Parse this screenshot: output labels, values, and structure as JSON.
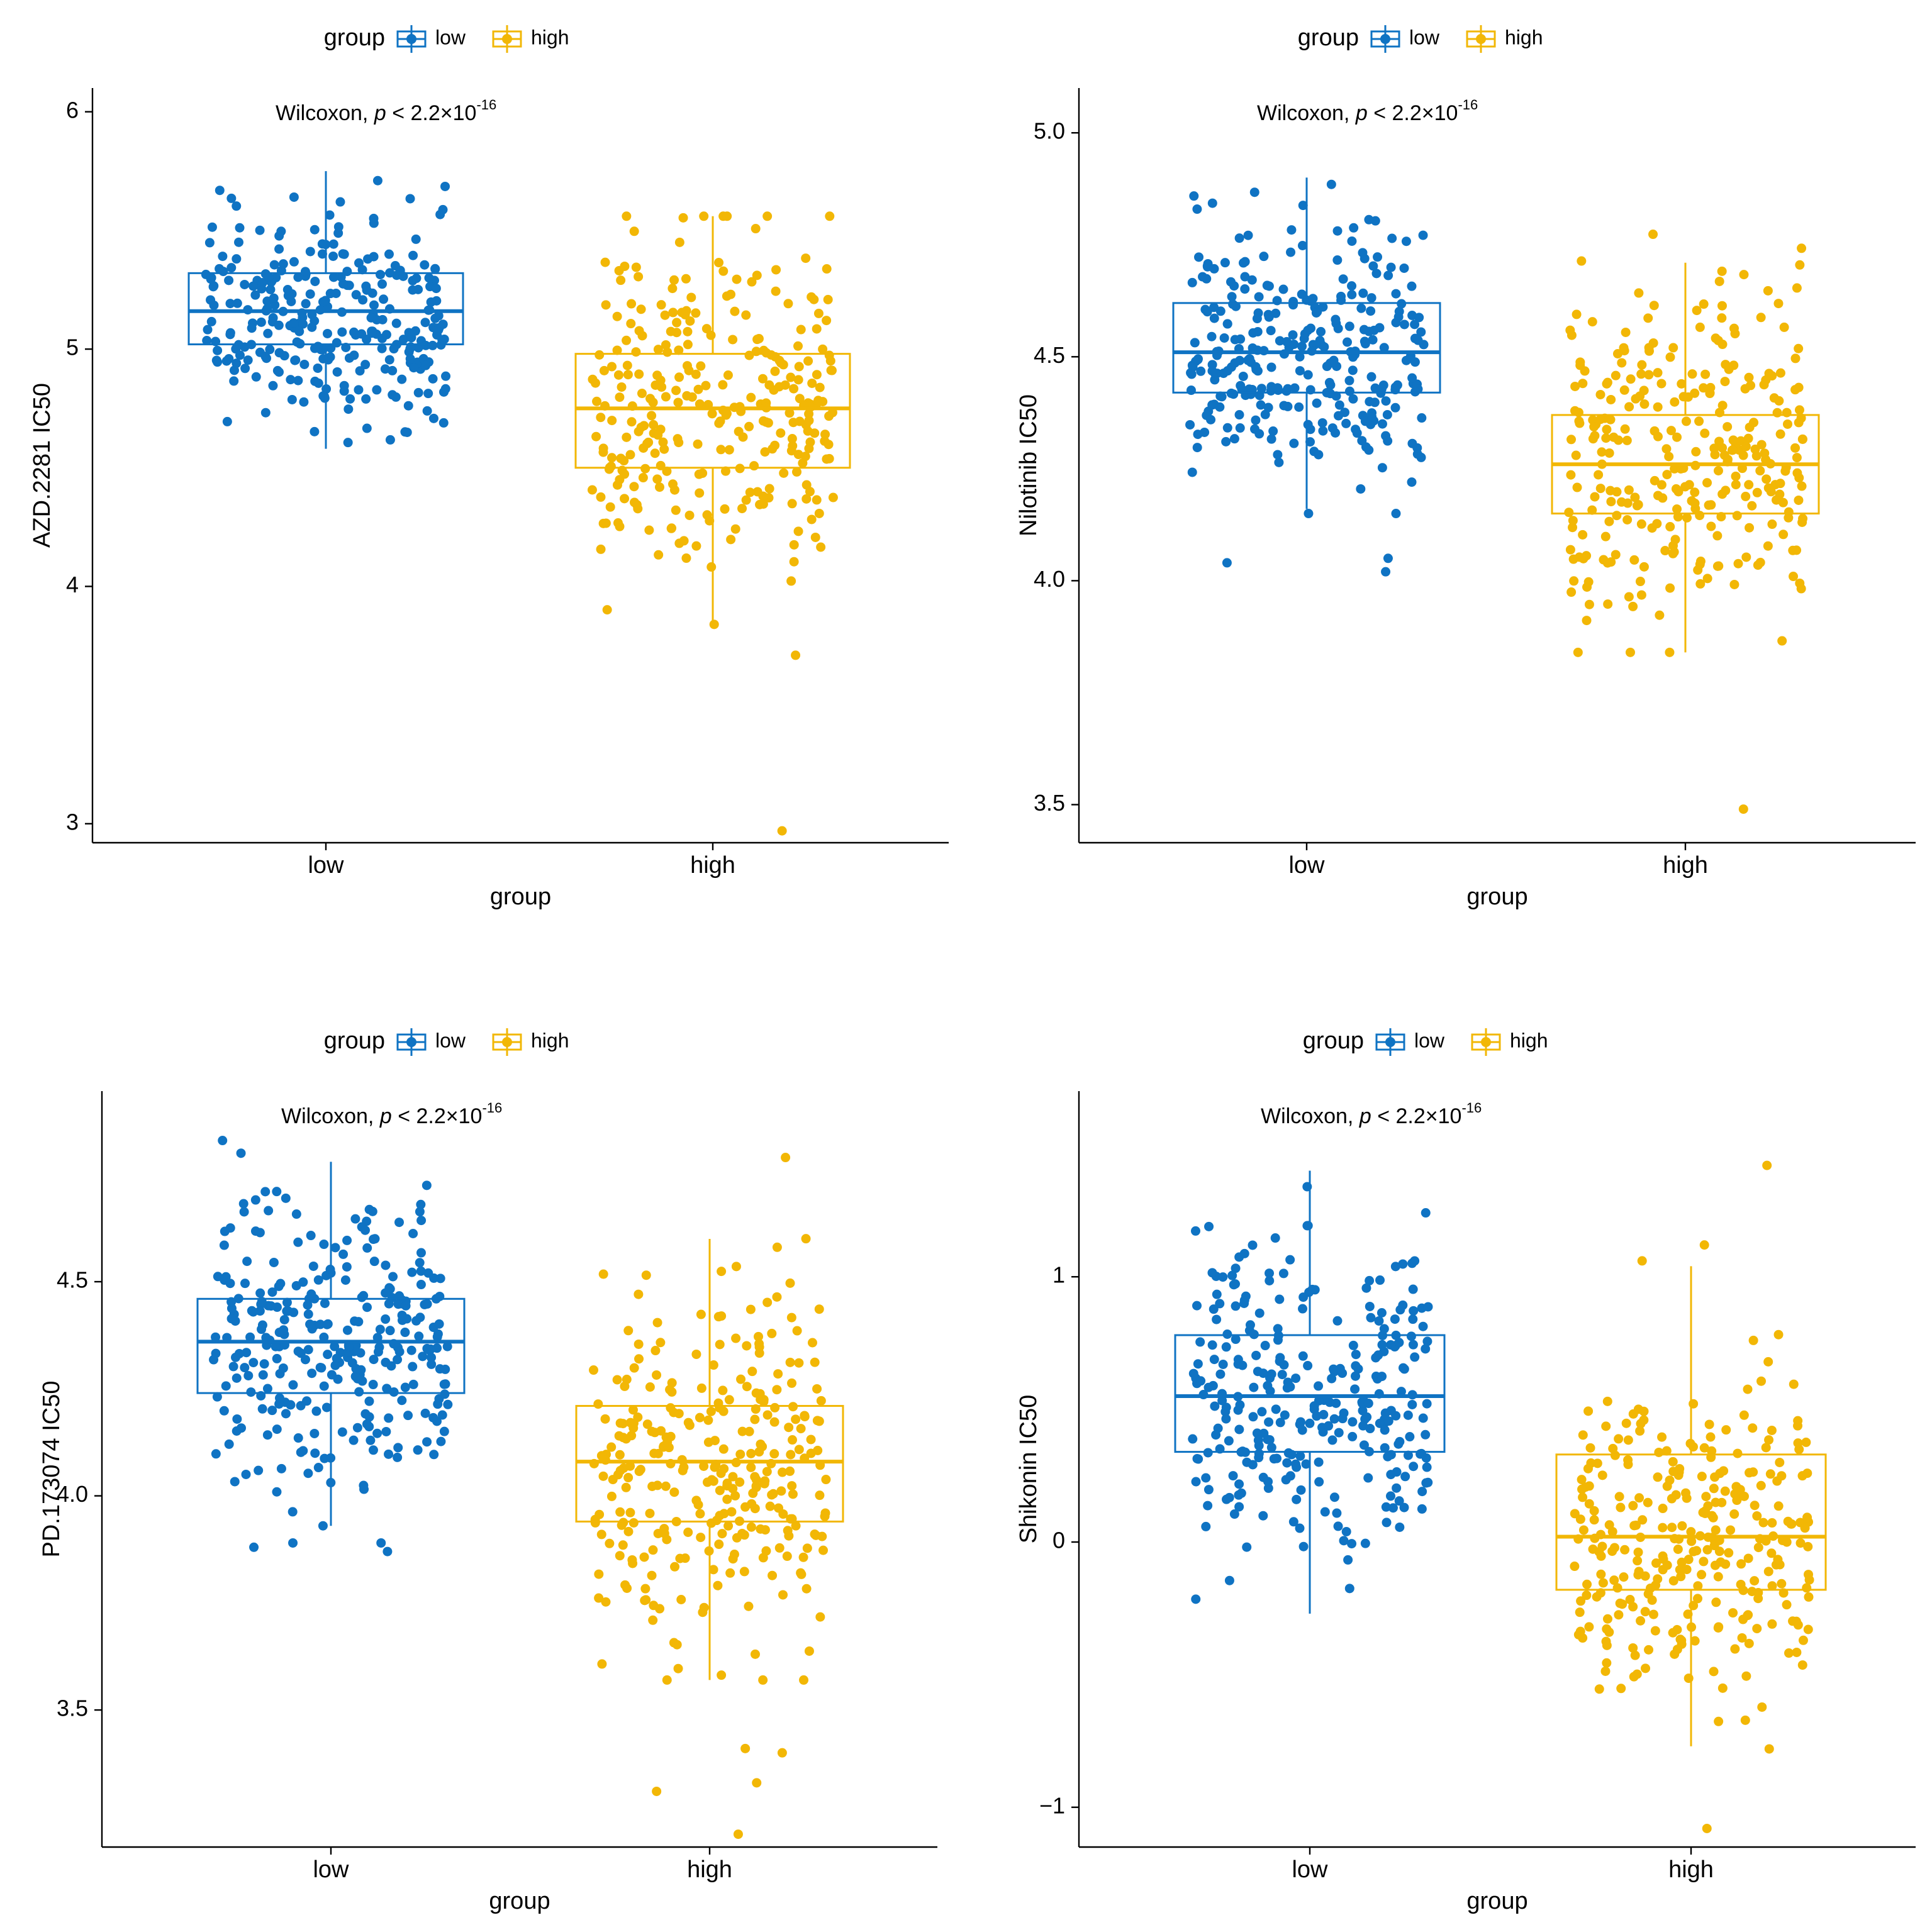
{
  "colors": {
    "low": "#0f73c3",
    "high": "#f2b705"
  },
  "chart_data": [
    {
      "type": "boxplot",
      "title": "",
      "xlabel": "group",
      "ylabel": "AZD.2281 IC50",
      "categories": [
        "low",
        "high"
      ],
      "yticks": [
        "3",
        "4",
        "5",
        "6"
      ],
      "ylim": [
        2.92,
        6.1
      ],
      "legend": {
        "title": "group",
        "items": [
          "low",
          "high"
        ],
        "placement": "top"
      },
      "annotation": {
        "text": "Wilcoxon, ",
        "p_symbol": "p",
        "p_text": " < 2.2×10",
        "exponent": "-16"
      },
      "series": [
        {
          "name": "low",
          "box": {
            "min": 4.58,
            "q1": 5.02,
            "median": 5.16,
            "q3": 5.32,
            "max": 5.75
          },
          "outliers": [],
          "range": [
            4.53,
            5.97
          ],
          "center": 5.16,
          "spread": 0.22,
          "n": 300,
          "seed": 11
        },
        {
          "name": "high",
          "box": {
            "min": 3.83,
            "q1": 4.5,
            "median": 4.75,
            "q3": 4.98,
            "max": 5.56
          },
          "outliers": [
            3.71,
            2.97
          ],
          "range": [
            3.84,
            5.56
          ],
          "center": 4.75,
          "spread": 0.33,
          "n": 300,
          "seed": 12
        }
      ]
    },
    {
      "type": "boxplot",
      "title": "",
      "xlabel": "group",
      "ylabel": "Nilotinib IC50",
      "categories": [
        "low",
        "high"
      ],
      "yticks": [
        "3.5",
        "4.0",
        "4.5",
        "5.0"
      ],
      "ylim": [
        3.415,
        5.1
      ],
      "legend": {
        "title": "group",
        "items": [
          "low",
          "high"
        ],
        "placement": "top"
      },
      "annotation": {
        "text": "Wilcoxon, ",
        "p_symbol": "p",
        "p_text": " < 2.2×10",
        "exponent": "-16"
      },
      "series": [
        {
          "name": "low",
          "box": {
            "min": 4.16,
            "q1": 4.42,
            "median": 4.51,
            "q3": 4.62,
            "max": 4.9
          },
          "outliers": [
            4.02,
            4.04,
            4.05
          ],
          "range": [
            4.15,
            5.02
          ],
          "center": 4.51,
          "spread": 0.15,
          "n": 300,
          "seed": 21
        },
        {
          "name": "high",
          "box": {
            "min": 3.84,
            "q1": 4.15,
            "median": 4.26,
            "q3": 4.37,
            "max": 4.71
          },
          "outliers": [
            3.49
          ],
          "range": [
            3.84,
            4.78
          ],
          "center": 4.26,
          "spread": 0.18,
          "n": 300,
          "seed": 22
        }
      ]
    },
    {
      "type": "boxplot",
      "title": "",
      "xlabel": "group",
      "ylabel": "PD.173074 IC50",
      "categories": [
        "low",
        "high"
      ],
      "yticks": [
        "3.5",
        "4.0",
        "4.5"
      ],
      "ylim": [
        3.18,
        4.945
      ],
      "legend": {
        "title": "group",
        "items": [
          "low",
          "high"
        ],
        "placement": "top"
      },
      "annotation": {
        "text": "Wilcoxon, ",
        "p_symbol": "p",
        "p_text": " < 2.2×10",
        "exponent": "-16"
      },
      "series": [
        {
          "name": "low",
          "box": {
            "min": 3.93,
            "q1": 4.24,
            "median": 4.36,
            "q3": 4.46,
            "max": 4.78
          },
          "outliers": [
            3.87,
            3.88,
            3.89,
            3.89
          ],
          "range": [
            3.93,
            4.86
          ],
          "center": 4.36,
          "spread": 0.16,
          "n": 300,
          "seed": 31
        },
        {
          "name": "high",
          "box": {
            "min": 3.57,
            "q1": 3.94,
            "median": 4.08,
            "q3": 4.21,
            "max": 4.6
          },
          "outliers": [
            3.41,
            3.4,
            3.33,
            3.31,
            3.21,
            4.79
          ],
          "range": [
            3.57,
            4.66
          ],
          "center": 4.08,
          "spread": 0.2,
          "n": 300,
          "seed": 32
        }
      ]
    },
    {
      "type": "boxplot",
      "title": "",
      "xlabel": "group",
      "ylabel": "Shikonin IC50",
      "categories": [
        "low",
        "high"
      ],
      "yticks": [
        "-1",
        "0",
        "1"
      ],
      "ylim": [
        -1.15,
        1.7
      ],
      "legend": {
        "title": "group",
        "items": [
          "low",
          "high"
        ],
        "placement": "top"
      },
      "annotation": {
        "text": "Wilcoxon, ",
        "p_symbol": "p",
        "p_text": " < 2.2×10",
        "exponent": "-16"
      },
      "series": [
        {
          "name": "low",
          "box": {
            "min": -0.27,
            "q1": 0.34,
            "median": 0.55,
            "q3": 0.78,
            "max": 1.4
          },
          "outliers": [],
          "range": [
            -0.28,
            1.6
          ],
          "center": 0.55,
          "spread": 0.3,
          "n": 300,
          "seed": 41
        },
        {
          "name": "high",
          "box": {
            "min": -0.77,
            "q1": -0.18,
            "median": 0.02,
            "q3": 0.33,
            "max": 1.04
          },
          "outliers": [
            1.12,
            1.42,
            -1.08
          ],
          "range": [
            -0.78,
            1.06
          ],
          "center": 0.02,
          "spread": 0.3,
          "n": 300,
          "seed": 42
        }
      ]
    }
  ]
}
